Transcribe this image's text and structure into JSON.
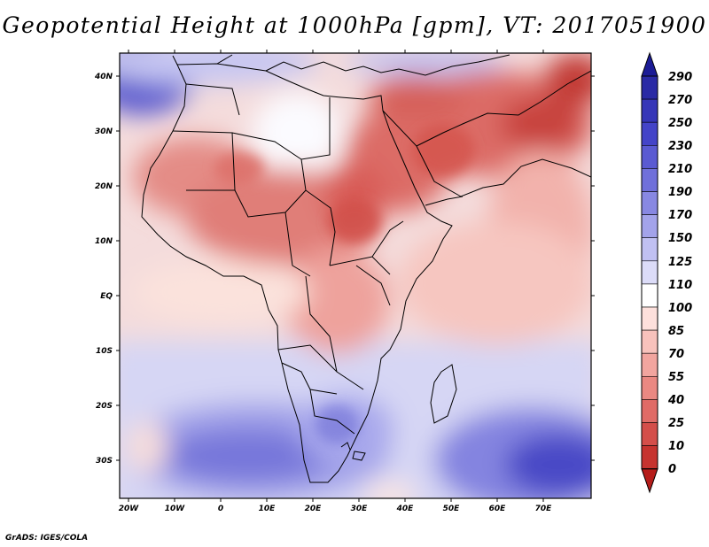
{
  "title": "Geopotential Height at 1000hPa [gpm], VT: 2017051900",
  "credit": "GrADS: IGES/COLA",
  "map": {
    "variable": "Geopotential Height",
    "level": "1000hPa",
    "units": "gpm",
    "valid_time": "2017051900",
    "lon_labels": [
      "20W",
      "10W",
      "0",
      "10E",
      "20E",
      "30E",
      "40E",
      "50E",
      "60E",
      "70E"
    ],
    "lat_labels": [
      "40N",
      "30N",
      "20N",
      "10N",
      "EQ",
      "10S",
      "20S",
      "30S"
    ]
  },
  "colorbar": {
    "levels": [
      "290",
      "270",
      "250",
      "230",
      "210",
      "190",
      "170",
      "150",
      "125",
      "110",
      "100",
      "85",
      "70",
      "55",
      "40",
      "25",
      "10",
      "0"
    ],
    "colors": [
      "#2a2aa5",
      "#3636b8",
      "#4444c8",
      "#5a5ad2",
      "#7070da",
      "#8888e2",
      "#a3a3ea",
      "#c0c0f2",
      "#dcdcf8",
      "#ffffff",
      "#fde0dc",
      "#f8c2bc",
      "#f2a59f",
      "#ea8882",
      "#e06b66",
      "#d44e4a",
      "#c6332f",
      "#b51d1a"
    ]
  }
}
